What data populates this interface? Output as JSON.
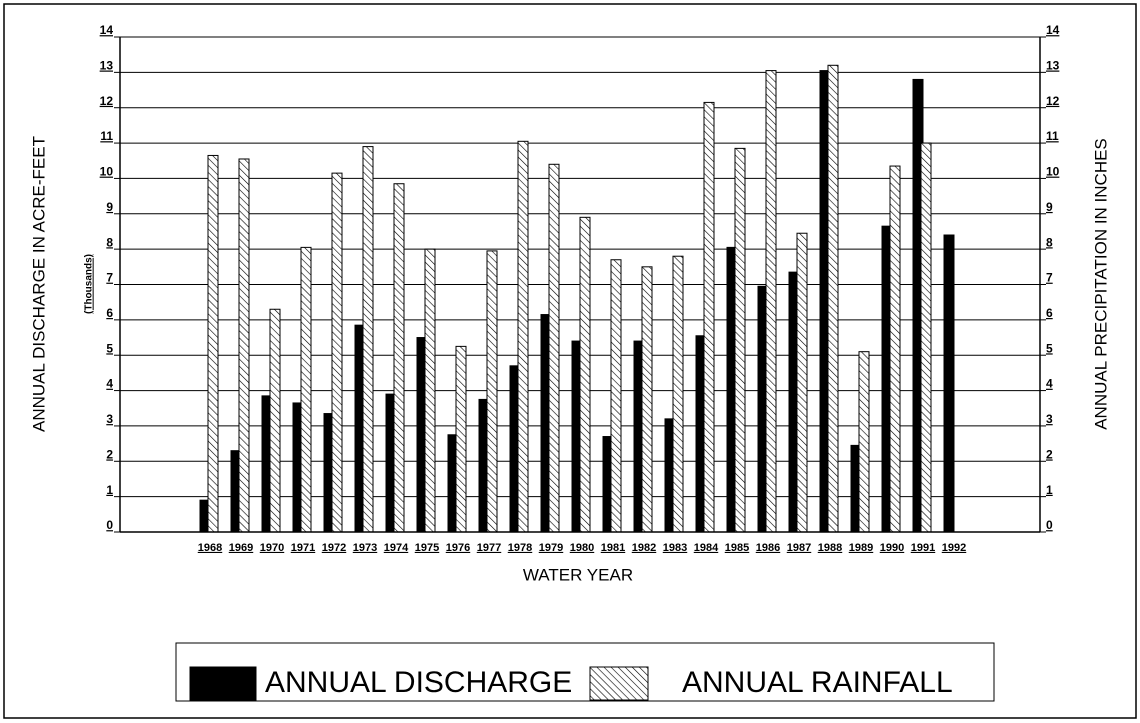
{
  "chart_data": {
    "type": "bar",
    "x_label": "WATER YEAR",
    "y_label": "ANNUAL DISCHARGE IN ACRE-FEET",
    "y_unit_label": "(Thousands)",
    "y2_label": "ANNUAL PRECIPITATION IN INCHES",
    "categories": [
      "1968",
      "1969",
      "1970",
      "1971",
      "1972",
      "1973",
      "1974",
      "1975",
      "1976",
      "1977",
      "1978",
      "1979",
      "1980",
      "1981",
      "1982",
      "1983",
      "1984",
      "1985",
      "1986",
      "1987",
      "1988",
      "1989",
      "1990",
      "1991",
      "1992"
    ],
    "series": [
      {
        "name": "ANNUAL DISCHARGE",
        "color": "#000000",
        "fill": "solid",
        "values": [
          0.9,
          2.3,
          3.85,
          3.65,
          3.35,
          5.85,
          3.9,
          5.5,
          2.75,
          3.75,
          4.7,
          6.15,
          5.4,
          2.7,
          5.4,
          3.2,
          5.55,
          8.05,
          6.95,
          7.35,
          13.05,
          2.45,
          8.65,
          12.8,
          8.4
        ]
      },
      {
        "name": "ANNUAL RAINFALL",
        "color": "#000000",
        "fill": "hatch",
        "axis": "y2",
        "values": [
          10.65,
          10.55,
          6.3,
          8.05,
          10.15,
          10.9,
          9.85,
          8.0,
          5.25,
          7.95,
          11.05,
          10.4,
          8.9,
          7.7,
          7.5,
          7.8,
          12.15,
          10.85,
          13.05,
          8.45,
          13.2,
          5.1,
          10.35,
          11.0,
          null
        ]
      }
    ],
    "ylim": [
      0,
      14
    ],
    "yticks": [
      0,
      1,
      2,
      3,
      4,
      5,
      6,
      7,
      8,
      9,
      10,
      11,
      12,
      13,
      14
    ],
    "y2lim": [
      0,
      14
    ],
    "y2ticks": [
      0,
      1,
      2,
      3,
      4,
      5,
      6,
      7,
      8,
      9,
      10,
      11,
      12,
      13,
      14
    ],
    "grid": true,
    "legend": "bottom"
  }
}
